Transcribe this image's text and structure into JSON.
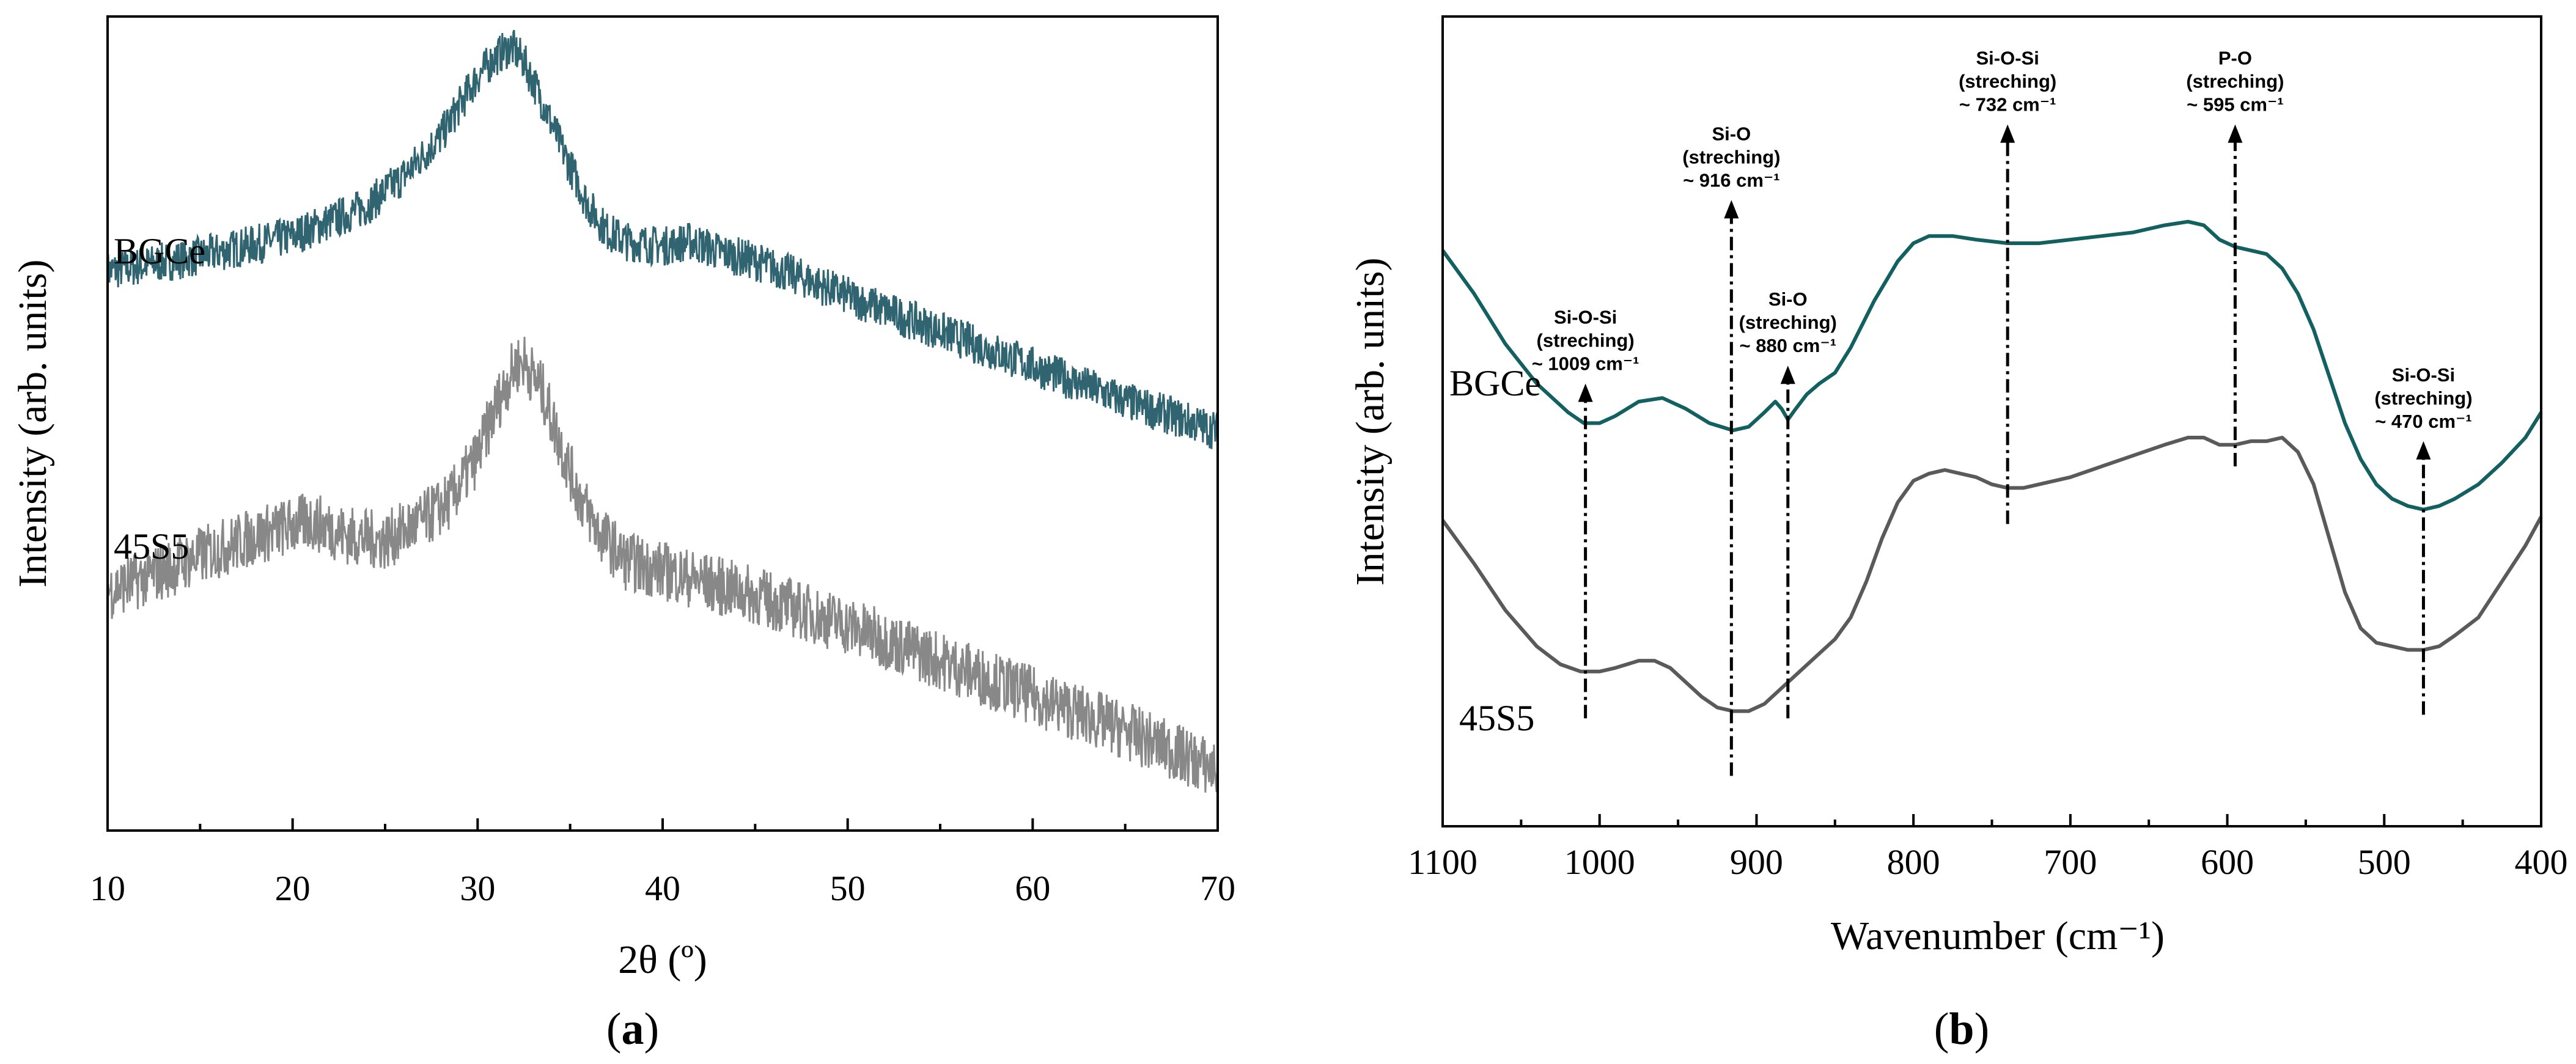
{
  "chart_data": [
    {
      "type": "line",
      "panel_label": "a",
      "title": "",
      "xlabel": "2θ (º)",
      "ylabel": "Intensity (arb. units)",
      "xlim": [
        10,
        70
      ],
      "x_ticks": [
        10,
        20,
        30,
        40,
        50,
        60,
        70
      ],
      "x_tick_labels": [
        "10",
        "20",
        "30",
        "40",
        "50",
        "60",
        "70"
      ],
      "y_ticks_visible": false,
      "grid": false,
      "series": [
        {
          "name": "BGCe",
          "color": "#2f6470",
          "noise_amplitude": 4,
          "x": [
            10,
            15,
            20,
            24,
            26,
            28,
            29,
            30,
            31,
            31.8,
            32.5,
            33.5,
            34.5,
            36,
            37,
            38,
            40,
            41.5,
            43,
            45,
            48,
            50,
            55,
            60,
            65,
            70
          ],
          "y": [
            57,
            60,
            64,
            70,
            76,
            84,
            90,
            96,
            100,
            102,
            99,
            91,
            82,
            70,
            65,
            63,
            62,
            63,
            61,
            59,
            55,
            52,
            45,
            38,
            31,
            25
          ]
        },
        {
          "name": "45S5",
          "color": "#888888",
          "noise_amplitude": 6,
          "x": [
            10,
            13,
            15,
            18,
            21,
            23,
            25,
            27,
            28.5,
            30,
            31,
            32,
            32.5,
            33.5,
            34.5,
            35.5,
            36.5,
            38,
            40,
            45,
            50,
            55,
            60,
            65,
            70
          ],
          "y": [
            -7,
            -3,
            0,
            4,
            7,
            4,
            3,
            7,
            11,
            20,
            30,
            38,
            39,
            33,
            22,
            12,
            5,
            -1,
            -3,
            -8,
            -14,
            -21,
            -28,
            -35,
            -43
          ]
        }
      ]
    },
    {
      "type": "line",
      "panel_label": "b",
      "title": "",
      "xlabel": "Wavenumber (cm⁻¹)",
      "ylabel": "Intensity (arb. units)",
      "xlim": [
        1100,
        400
      ],
      "x_ticks": [
        1100,
        1000,
        900,
        800,
        700,
        600,
        500,
        400
      ],
      "x_tick_labels": [
        "1100",
        "1000",
        "900",
        "800",
        "700",
        "600",
        "500",
        "400"
      ],
      "y_ticks_visible": false,
      "grid": false,
      "series": [
        {
          "name": "BGCe",
          "color": "#136060",
          "x": [
            1100,
            1080,
            1060,
            1040,
            1020,
            1010,
            1000,
            990,
            975,
            960,
            945,
            930,
            915,
            905,
            895,
            888,
            884,
            880,
            875,
            868,
            860,
            850,
            840,
            825,
            810,
            800,
            790,
            775,
            760,
            740,
            720,
            700,
            680,
            660,
            640,
            625,
            615,
            605,
            595,
            585,
            575,
            565,
            555,
            545,
            535,
            525,
            515,
            505,
            495,
            485,
            475,
            465,
            455,
            440,
            425,
            410,
            400
          ],
          "y": [
            100,
            88,
            74,
            63,
            55,
            52,
            52,
            54,
            58,
            59,
            56,
            52,
            50,
            51,
            55,
            58,
            56,
            53,
            56,
            60,
            63,
            66,
            73,
            86,
            97,
            102,
            104,
            104,
            103,
            102,
            102,
            103,
            104,
            105,
            107,
            108,
            107,
            103,
            101,
            100,
            99,
            95,
            88,
            78,
            65,
            52,
            42,
            35,
            31,
            29,
            28,
            29,
            31,
            35,
            41,
            48,
            55
          ]
        },
        {
          "name": "45S5",
          "color": "#5a5a5a",
          "x": [
            1100,
            1080,
            1060,
            1040,
            1025,
            1012,
            1000,
            990,
            975,
            965,
            955,
            945,
            935,
            925,
            915,
            905,
            895,
            880,
            865,
            850,
            840,
            830,
            820,
            810,
            800,
            790,
            780,
            770,
            760,
            750,
            740,
            730,
            720,
            700,
            680,
            660,
            640,
            625,
            615,
            605,
            595,
            585,
            575,
            565,
            555,
            545,
            535,
            525,
            515,
            505,
            495,
            485,
            475,
            465,
            455,
            440,
            425,
            410,
            400
          ],
          "y": [
            25,
            13,
            0,
            -10,
            -15,
            -17,
            -17,
            -16,
            -14,
            -14,
            -16,
            -20,
            -24,
            -27,
            -28,
            -28,
            -26,
            -20,
            -14,
            -8,
            -2,
            8,
            20,
            30,
            36,
            38,
            39,
            38,
            37,
            35,
            34,
            34,
            35,
            37,
            40,
            43,
            46,
            48,
            48,
            46,
            46,
            47,
            47,
            48,
            44,
            35,
            20,
            5,
            -5,
            -9,
            -10,
            -11,
            -11,
            -10,
            -7,
            -2,
            8,
            18,
            26
          ]
        }
      ],
      "annotations": [
        {
          "lines": [
            "Si-O-Si",
            "(streching)",
            "~ 1009 cm⁻¹"
          ],
          "x": 1009,
          "line_top": 63,
          "line_bottom": -30
        },
        {
          "lines": [
            "Si-O",
            "(streching)",
            "~ 916 cm⁻¹"
          ],
          "x": 916,
          "line_top": 114,
          "line_bottom": -46
        },
        {
          "lines": [
            "Si-O",
            "(streching)",
            "~ 880 cm⁻¹"
          ],
          "x": 880,
          "line_top": 68,
          "line_bottom": -30
        },
        {
          "lines": [
            "Si-O-Si",
            "(streching)",
            "~ 732 cm⁻¹"
          ],
          "x": 740,
          "line_top": 135,
          "line_bottom": 24
        },
        {
          "lines": [
            "P-O",
            "(streching)",
            "~ 595 cm⁻¹"
          ],
          "x": 595,
          "line_top": 135,
          "line_bottom": 40
        },
        {
          "lines": [
            "Si-O-Si",
            "(streching)",
            "~ 470 cm⁻¹"
          ],
          "x": 475,
          "line_top": 47,
          "line_bottom": -29
        }
      ]
    }
  ]
}
